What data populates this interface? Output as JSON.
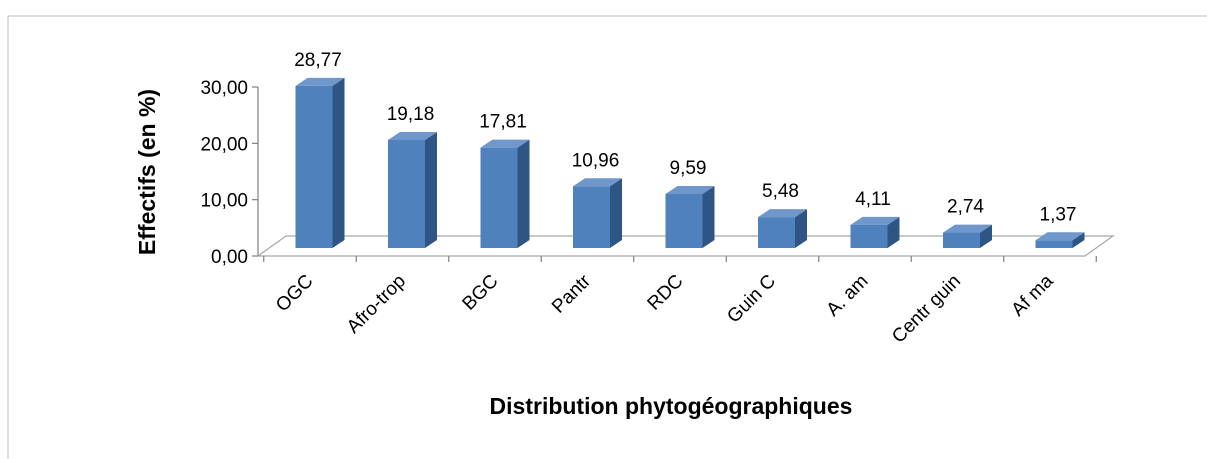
{
  "chart_data": {
    "type": "bar",
    "categories": [
      "OGC",
      "Afro-trop",
      "BGC",
      "Pantr",
      "RDC",
      "Guin C",
      "A. am",
      "Centr guin",
      "Af ma"
    ],
    "values": [
      28.77,
      19.18,
      17.81,
      10.96,
      9.59,
      5.48,
      4.11,
      2.74,
      1.37
    ],
    "data_labels": [
      "28,77",
      "19,18",
      "17,81",
      "10,96",
      "9,59",
      "5,48",
      "4,11",
      "2,74",
      "1,37"
    ],
    "title": "",
    "xlabel": "Distribution phytogéographiques",
    "ylabel": "Effectifs (en %)",
    "ylim": [
      0,
      30
    ],
    "yticks": [
      {
        "value": 0,
        "label": "0,00"
      },
      {
        "value": 10,
        "label": "10,00"
      },
      {
        "value": 20,
        "label": "20,00"
      },
      {
        "value": 30,
        "label": "30,00"
      }
    ],
    "grid": false,
    "legend": "none",
    "style": "3d-column",
    "colors": {
      "bar_front": "#4f81bd",
      "bar_side": "#2f5585",
      "bar_top": "#6f97cc",
      "axis": "#808080",
      "frame": "#bfbfbf"
    }
  }
}
